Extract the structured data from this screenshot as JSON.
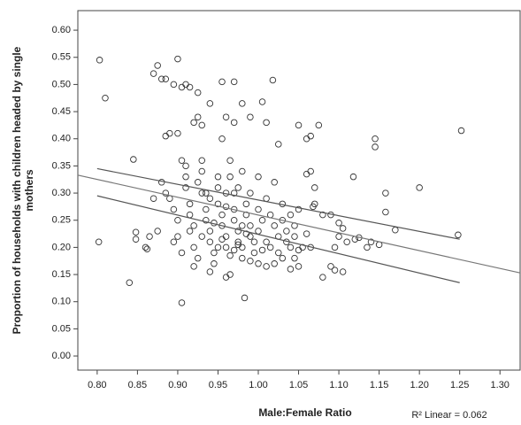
{
  "chart_data": {
    "type": "scatter",
    "xlabel": "Male:Female Ratio",
    "ylabel": [
      "Proportion of households with children headed by single",
      "mothers"
    ],
    "annotation": "R² Linear = 0.062",
    "xlim": [
      0.776,
      1.325
    ],
    "ylim": [
      -0.026,
      0.636
    ],
    "xticks": [
      {
        "value": 0.8,
        "label": "0.80"
      },
      0.85,
      {
        "value": 0.9,
        "label": "0.90"
      },
      0.95,
      {
        "value": 1.0,
        "label": "1.00"
      },
      1.05,
      {
        "value": 1.1,
        "label": "1.10"
      },
      1.15,
      {
        "value": 1.2,
        "label": "1.20"
      },
      1.25,
      {
        "value": 1.3,
        "label": "1.30"
      }
    ],
    "yticks": [
      {
        "value": 0,
        "label": "0.00"
      },
      0.05,
      {
        "value": 0.1,
        "label": "0.10"
      },
      0.15,
      {
        "value": 0.2,
        "label": "0.20"
      },
      0.25,
      {
        "value": 0.3,
        "label": "0.30"
      },
      0.35,
      {
        "value": 0.4,
        "label": "0.40"
      },
      0.45,
      {
        "value": 0.5,
        "label": "0.50"
      },
      0.55,
      {
        "value": 0.6,
        "label": "0.60"
      }
    ],
    "color": "#333333",
    "x": [
      0.803,
      0.81,
      0.802,
      0.84,
      0.845,
      0.848,
      0.848,
      0.86,
      0.862,
      0.87,
      0.875,
      0.88,
      0.885,
      0.9,
      0.895,
      0.905,
      0.91,
      0.915,
      0.925,
      0.94,
      0.955,
      0.97,
      0.98,
      1.005,
      1.018,
      0.885,
      0.89,
      0.9,
      0.92,
      0.925,
      0.93,
      0.96,
      0.955,
      0.97,
      0.99,
      1.01,
      1.025,
      1.05,
      1.06,
      1.065,
      1.075,
      1.145,
      1.145,
      1.118,
      1.065,
      1.06,
      1.252,
      1.2,
      1.158,
      1.158,
      1.17,
      1.248,
      1.14,
      1.15,
      1.12,
      1.125,
      1.135,
      1.1,
      1.1,
      1.095,
      1.09,
      1.08,
      1.105,
      1.11,
      1.09,
      1.095,
      1.105,
      1.08,
      1.07,
      1.07,
      1.068,
      1.06,
      1.065,
      1.05,
      1.045,
      1.05,
      1.04,
      0.983,
      0.905,
      0.96,
      0.965,
      0.88,
      0.885,
      0.89,
      0.895,
      0.9,
      0.9,
      0.895,
      0.905,
      0.91,
      0.91,
      0.91,
      0.915,
      0.915,
      0.92,
      0.92,
      0.925,
      0.92,
      0.93,
      0.93,
      0.93,
      0.935,
      0.935,
      0.94,
      0.94,
      0.945,
      0.945,
      0.95,
      0.95,
      0.95,
      0.955,
      0.955,
      0.96,
      0.96,
      0.965,
      0.965,
      0.97,
      0.97,
      0.97,
      0.975,
      0.975,
      0.98,
      0.98,
      0.985,
      0.985,
      0.99,
      0.99,
      0.99,
      0.995,
      0.995,
      1.0,
      1.0,
      1.0,
      1.005,
      1.01,
      1.01,
      1.015,
      1.015,
      1.02,
      1.02,
      1.025,
      1.025,
      1.03,
      1.03,
      1.035,
      1.035,
      1.04,
      1.04,
      1.045,
      1.045,
      1.03,
      1.02,
      0.94,
      0.935,
      0.925,
      0.905,
      0.965,
      0.98,
      1.0,
      0.875,
      0.87,
      0.865,
      0.96,
      0.975,
      0.985,
      0.955,
      0.945,
      0.97,
      0.99,
      1.005,
      0.95,
      0.93,
      0.915,
      0.96,
      0.975,
      0.94,
      1.01,
      0.98,
      1.05,
      1.055
    ],
    "y": [
      0.545,
      0.475,
      0.21,
      0.135,
      0.362,
      0.228,
      0.215,
      0.2,
      0.197,
      0.52,
      0.535,
      0.51,
      0.51,
      0.547,
      0.5,
      0.495,
      0.5,
      0.495,
      0.485,
      0.465,
      0.505,
      0.505,
      0.465,
      0.468,
      0.508,
      0.405,
      0.41,
      0.41,
      0.43,
      0.44,
      0.425,
      0.44,
      0.4,
      0.43,
      0.44,
      0.43,
      0.39,
      0.425,
      0.4,
      0.405,
      0.425,
      0.4,
      0.385,
      0.33,
      0.34,
      0.335,
      0.415,
      0.31,
      0.3,
      0.265,
      0.232,
      0.223,
      0.21,
      0.205,
      0.215,
      0.218,
      0.2,
      0.245,
      0.22,
      0.2,
      0.26,
      0.26,
      0.235,
      0.21,
      0.165,
      0.158,
      0.155,
      0.145,
      0.31,
      0.28,
      0.275,
      0.225,
      0.2,
      0.195,
      0.18,
      0.165,
      0.16,
      0.107,
      0.098,
      0.145,
      0.15,
      0.32,
      0.3,
      0.29,
      0.27,
      0.25,
      0.22,
      0.21,
      0.19,
      0.35,
      0.33,
      0.31,
      0.28,
      0.26,
      0.24,
      0.2,
      0.18,
      0.165,
      0.36,
      0.34,
      0.3,
      0.27,
      0.25,
      0.23,
      0.21,
      0.19,
      0.17,
      0.33,
      0.31,
      0.28,
      0.26,
      0.24,
      0.22,
      0.2,
      0.185,
      0.33,
      0.3,
      0.27,
      0.25,
      0.23,
      0.21,
      0.2,
      0.18,
      0.26,
      0.28,
      0.3,
      0.24,
      0.22,
      0.21,
      0.19,
      0.17,
      0.27,
      0.23,
      0.25,
      0.29,
      0.21,
      0.2,
      0.26,
      0.32,
      0.24,
      0.22,
      0.19,
      0.28,
      0.25,
      0.21,
      0.23,
      0.26,
      0.2,
      0.22,
      0.24,
      0.18,
      0.17,
      0.155,
      0.3,
      0.32,
      0.36,
      0.36,
      0.34,
      0.33,
      0.23,
      0.29,
      0.22,
      0.275,
      0.205,
      0.225,
      0.215,
      0.245,
      0.195,
      0.175,
      0.195,
      0.2,
      0.22,
      0.23,
      0.3,
      0.31,
      0.29,
      0.165,
      0.24,
      0.27,
      0.2
    ],
    "fit_lines": [
      {
        "color": "#777777",
        "x": [
          0.776,
          1.325
        ],
        "y": [
          0.333,
          0.153
        ]
      },
      {
        "color": "#555555",
        "x": [
          0.8,
          1.25
        ],
        "y": [
          0.345,
          0.215
        ]
      },
      {
        "color": "#555555",
        "x": [
          0.8,
          1.25
        ],
        "y": [
          0.295,
          0.135
        ]
      }
    ]
  }
}
